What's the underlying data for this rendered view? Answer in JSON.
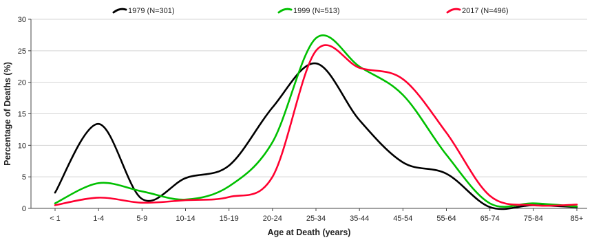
{
  "chart_data": {
    "type": "line",
    "title": "",
    "xlabel": "Age at Death (years)",
    "ylabel": "Percentage of Deaths (%)",
    "ylim": [
      0,
      30
    ],
    "yticks": [
      "0",
      "5",
      "10",
      "15",
      "20",
      "25",
      "30"
    ],
    "grid": "horizontal",
    "legend_position": "top",
    "categories": [
      "< 1",
      "1-4",
      "5-9",
      "10-14",
      "15-19",
      "20-24",
      "25-34",
      "35-44",
      "45-54",
      "55-64",
      "65-74",
      "75-84",
      "85+"
    ],
    "series": [
      {
        "name": "1979 (N=301)",
        "color": "#000000",
        "values": [
          2.5,
          13.4,
          1.5,
          4.8,
          6.8,
          16.0,
          23.0,
          14.0,
          7.3,
          5.5,
          0.2,
          0.5,
          0.2
        ]
      },
      {
        "name": "1999 (N=513)",
        "color": "#00c000",
        "values": [
          0.8,
          4.0,
          2.7,
          1.4,
          3.5,
          10.5,
          27.0,
          22.5,
          18.0,
          8.5,
          0.8,
          0.8,
          0.3
        ]
      },
      {
        "name": "2017 (N=496)",
        "color": "#ff0030",
        "values": [
          0.5,
          1.7,
          0.9,
          1.3,
          1.8,
          5.0,
          25.0,
          22.3,
          20.5,
          12.0,
          2.0,
          0.5,
          0.6
        ]
      }
    ]
  }
}
